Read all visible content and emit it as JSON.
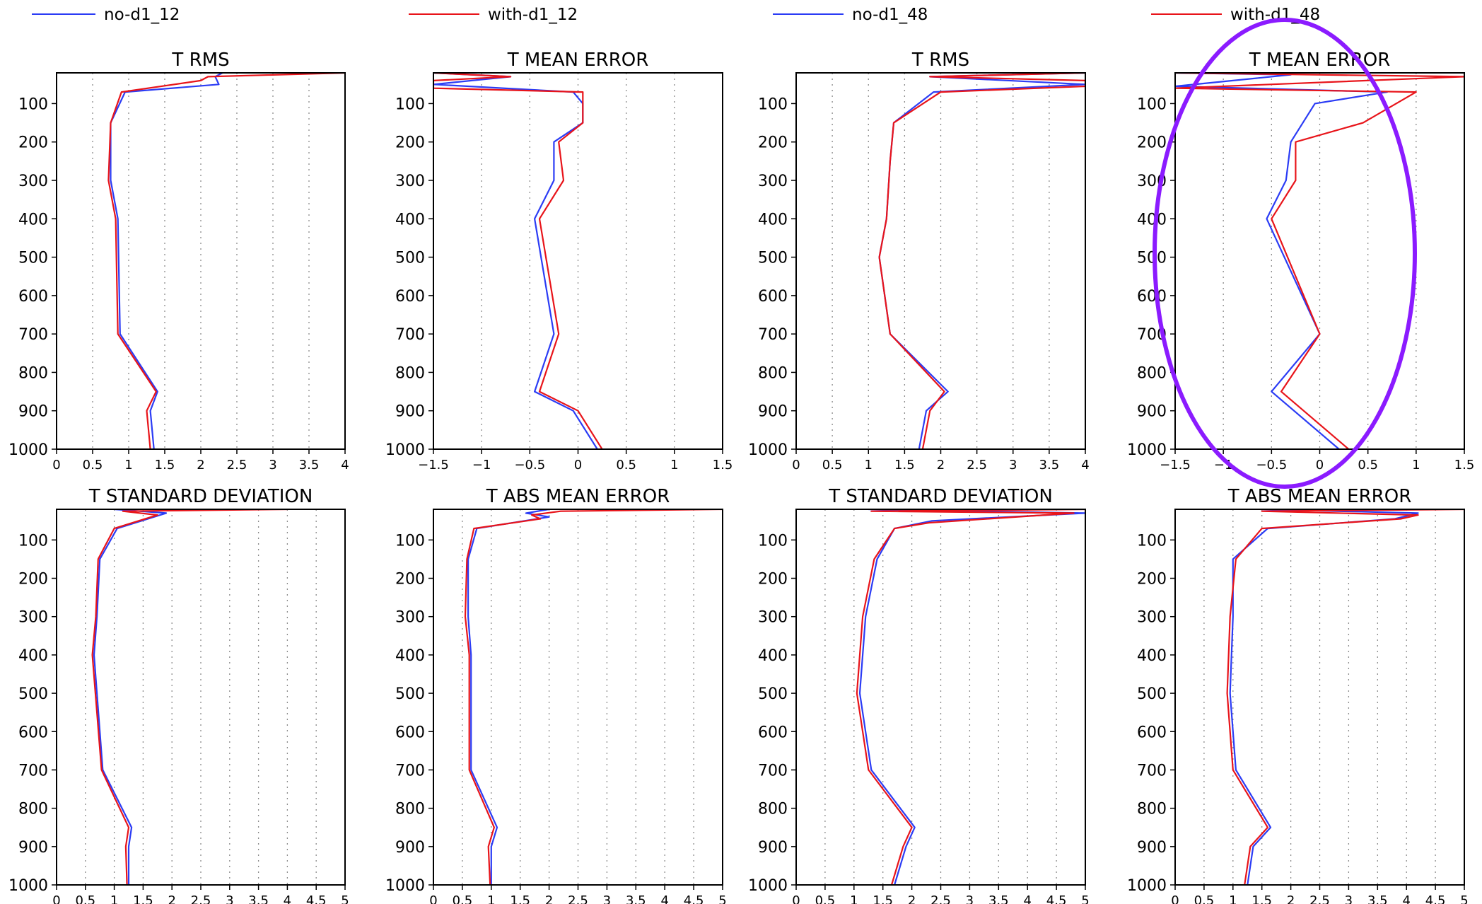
{
  "legend": [
    {
      "label": "no-d1_12",
      "color": "#2b3cf5"
    },
    {
      "label": "with-d1_12",
      "color": "#e8141a"
    },
    {
      "label": "no-d1_48",
      "color": "#2b3cf5"
    },
    {
      "label": "with-d1_48",
      "color": "#e8141a"
    }
  ],
  "colors": {
    "blue": "#2b3cf5",
    "red": "#e8141a",
    "annotation_ellipse": "#8b1bff"
  },
  "annotation": {
    "type": "ellipse",
    "panel": "T MEAN ERROR (48)",
    "description_visible": false
  },
  "chart_data": [
    {
      "type": "line",
      "title": "T RMS",
      "ylim": [
        1000,
        20
      ],
      "yticks": [
        100,
        200,
        300,
        400,
        500,
        600,
        700,
        800,
        900,
        1000
      ],
      "y_inverted": true,
      "xlim": [
        0,
        4
      ],
      "xticks": [
        "0",
        "0.5",
        "1",
        "1.5",
        "2",
        "2.5",
        "3",
        "3.5",
        "4"
      ],
      "grid": "vertical dotted",
      "series": [
        {
          "name": "no-d1_12",
          "color": "#2b3cf5",
          "points": [
            [
              2.3,
              20
            ],
            [
              2.2,
              30
            ],
            [
              2.25,
              50
            ],
            [
              0.95,
              70
            ],
            [
              0.75,
              150
            ],
            [
              0.75,
              300
            ],
            [
              0.85,
              400
            ],
            [
              0.88,
              700
            ],
            [
              1.4,
              850
            ],
            [
              1.3,
              900
            ],
            [
              1.35,
              1000
            ]
          ]
        },
        {
          "name": "with-d1_12",
          "color": "#e8141a",
          "points": [
            [
              4.0,
              20
            ],
            [
              2.1,
              30
            ],
            [
              2.0,
              40
            ],
            [
              0.9,
              70
            ],
            [
              0.75,
              150
            ],
            [
              0.72,
              300
            ],
            [
              0.82,
              400
            ],
            [
              0.85,
              700
            ],
            [
              1.38,
              850
            ],
            [
              1.25,
              900
            ],
            [
              1.3,
              1000
            ]
          ]
        }
      ]
    },
    {
      "type": "line",
      "title": "T MEAN ERROR",
      "ylim": [
        1000,
        20
      ],
      "yticks": [
        100,
        200,
        300,
        400,
        500,
        600,
        700,
        800,
        900,
        1000
      ],
      "y_inverted": true,
      "xlim": [
        -1.5,
        1.5
      ],
      "xticks": [
        "−1.5",
        "−1",
        "−0.5",
        "0",
        "0.5",
        "1",
        "1.5"
      ],
      "grid": "vertical dotted",
      "series": [
        {
          "name": "no-d1_12",
          "color": "#2b3cf5",
          "points": [
            [
              -1.5,
              20
            ],
            [
              -0.7,
              30
            ],
            [
              -1.5,
              50
            ],
            [
              -0.05,
              70
            ],
            [
              0.05,
              100
            ],
            [
              0.05,
              150
            ],
            [
              -0.25,
              200
            ],
            [
              -0.25,
              300
            ],
            [
              -0.45,
              400
            ],
            [
              -0.25,
              700
            ],
            [
              -0.45,
              850
            ],
            [
              -0.05,
              900
            ],
            [
              0.2,
              1000
            ]
          ]
        },
        {
          "name": "with-d1_12",
          "color": "#e8141a",
          "points": [
            [
              -1.5,
              20
            ],
            [
              -0.7,
              30
            ],
            [
              -1.5,
              40
            ],
            [
              -1.5,
              60
            ],
            [
              0.05,
              70
            ],
            [
              0.05,
              150
            ],
            [
              -0.2,
              200
            ],
            [
              -0.15,
              300
            ],
            [
              -0.4,
              400
            ],
            [
              -0.2,
              700
            ],
            [
              -0.4,
              850
            ],
            [
              0.0,
              900
            ],
            [
              0.25,
              1000
            ]
          ]
        }
      ]
    },
    {
      "type": "line",
      "title": "T RMS",
      "ylim": [
        1000,
        20
      ],
      "yticks": [
        100,
        200,
        300,
        400,
        500,
        600,
        700,
        800,
        900,
        1000
      ],
      "y_inverted": true,
      "xlim": [
        0,
        4
      ],
      "xticks": [
        "0",
        "0.5",
        "1",
        "1.5",
        "2",
        "2.5",
        "3",
        "3.5",
        "4"
      ],
      "grid": "vertical dotted",
      "series": [
        {
          "name": "no-d1_48",
          "color": "#2b3cf5",
          "points": [
            [
              4.0,
              20
            ],
            [
              1.85,
              30
            ],
            [
              4.0,
              50
            ],
            [
              1.9,
              70
            ],
            [
              1.35,
              150
            ],
            [
              1.3,
              250
            ],
            [
              1.25,
              400
            ],
            [
              1.15,
              500
            ],
            [
              1.3,
              700
            ],
            [
              2.1,
              850
            ],
            [
              1.8,
              900
            ],
            [
              1.7,
              1000
            ]
          ]
        },
        {
          "name": "with-d1_48",
          "color": "#e8141a",
          "points": [
            [
              4.0,
              20
            ],
            [
              1.85,
              30
            ],
            [
              4.0,
              40
            ],
            [
              4.0,
              55
            ],
            [
              2.0,
              70
            ],
            [
              1.35,
              150
            ],
            [
              1.3,
              250
            ],
            [
              1.25,
              400
            ],
            [
              1.15,
              500
            ],
            [
              1.3,
              700
            ],
            [
              2.05,
              850
            ],
            [
              1.85,
              900
            ],
            [
              1.75,
              1000
            ]
          ]
        }
      ]
    },
    {
      "type": "line",
      "title": "T MEAN ERROR",
      "ylim": [
        1000,
        20
      ],
      "yticks": [
        100,
        200,
        300,
        400,
        500,
        600,
        700,
        800,
        900,
        1000
      ],
      "y_inverted": true,
      "xlim": [
        -1.5,
        1.5
      ],
      "xticks": [
        "−1.5",
        "−1",
        "−0.5",
        "0",
        "0.5",
        "1",
        "1.5"
      ],
      "grid": "vertical dotted",
      "series": [
        {
          "name": "no-d1_48",
          "color": "#2b3cf5",
          "points": [
            [
              -1.5,
              20
            ],
            [
              -0.3,
              25
            ],
            [
              -1.5,
              55
            ],
            [
              0.7,
              70
            ],
            [
              -0.05,
              100
            ],
            [
              -0.3,
              200
            ],
            [
              -0.35,
              300
            ],
            [
              -0.55,
              400
            ],
            [
              0.0,
              700
            ],
            [
              -0.5,
              850
            ],
            [
              0.2,
              1000
            ]
          ]
        },
        {
          "name": "with-d1_48",
          "color": "#e8141a",
          "points": [
            [
              -1.5,
              20
            ],
            [
              1.5,
              30
            ],
            [
              -1.5,
              60
            ],
            [
              1.0,
              70
            ],
            [
              0.45,
              150
            ],
            [
              -0.25,
              200
            ],
            [
              -0.25,
              300
            ],
            [
              -0.5,
              400
            ],
            [
              0.0,
              700
            ],
            [
              -0.4,
              850
            ],
            [
              0.3,
              1000
            ]
          ]
        }
      ]
    },
    {
      "type": "line",
      "title": "T STANDARD DEVIATION",
      "ylim": [
        1000,
        20
      ],
      "yticks": [
        100,
        200,
        300,
        400,
        500,
        600,
        700,
        800,
        900,
        1000
      ],
      "y_inverted": true,
      "xlim": [
        0,
        5
      ],
      "xticks": [
        "0",
        "0.5",
        "1",
        "1.5",
        "2",
        "2.5",
        "3",
        "3.5",
        "4",
        "4.5",
        "5"
      ],
      "grid": "vertical dotted",
      "series": [
        {
          "name": "no-d1_12",
          "color": "#2b3cf5",
          "points": [
            [
              1.0,
              20
            ],
            [
              1.9,
              30
            ],
            [
              1.05,
              70
            ],
            [
              0.75,
              150
            ],
            [
              0.7,
              300
            ],
            [
              0.65,
              400
            ],
            [
              0.8,
              700
            ],
            [
              1.3,
              850
            ],
            [
              1.25,
              900
            ],
            [
              1.25,
              1000
            ]
          ]
        },
        {
          "name": "with-d1_12",
          "color": "#e8141a",
          "points": [
            [
              4.0,
              20
            ],
            [
              1.15,
              25
            ],
            [
              1.75,
              35
            ],
            [
              1.0,
              70
            ],
            [
              0.72,
              150
            ],
            [
              0.68,
              300
            ],
            [
              0.62,
              400
            ],
            [
              0.78,
              700
            ],
            [
              1.25,
              850
            ],
            [
              1.2,
              900
            ],
            [
              1.22,
              1000
            ]
          ]
        }
      ]
    },
    {
      "type": "line",
      "title": "T ABS MEAN ERROR",
      "ylim": [
        1000,
        20
      ],
      "yticks": [
        100,
        200,
        300,
        400,
        500,
        600,
        700,
        800,
        900,
        1000
      ],
      "y_inverted": true,
      "xlim": [
        0,
        5
      ],
      "xticks": [
        "0",
        "0.5",
        "1",
        "1.5",
        "2",
        "2.5",
        "3",
        "3.5",
        "4",
        "4.5",
        "5"
      ],
      "grid": "vertical dotted",
      "series": [
        {
          "name": "no-d1_12",
          "color": "#2b3cf5",
          "points": [
            [
              2.0,
              20
            ],
            [
              1.6,
              30
            ],
            [
              2.0,
              40
            ],
            [
              0.75,
              70
            ],
            [
              0.6,
              150
            ],
            [
              0.6,
              300
            ],
            [
              0.65,
              400
            ],
            [
              0.65,
              700
            ],
            [
              1.1,
              850
            ],
            [
              1.0,
              900
            ],
            [
              1.0,
              1000
            ]
          ]
        },
        {
          "name": "with-d1_12",
          "color": "#e8141a",
          "points": [
            [
              5.0,
              20
            ],
            [
              2.2,
              25
            ],
            [
              1.7,
              35
            ],
            [
              1.85,
              45
            ],
            [
              0.7,
              70
            ],
            [
              0.58,
              150
            ],
            [
              0.55,
              300
            ],
            [
              0.62,
              400
            ],
            [
              0.62,
              700
            ],
            [
              1.05,
              850
            ],
            [
              0.95,
              900
            ],
            [
              0.98,
              1000
            ]
          ]
        }
      ]
    },
    {
      "type": "line",
      "title": "T STANDARD DEVIATION",
      "ylim": [
        1000,
        20
      ],
      "yticks": [
        100,
        200,
        300,
        400,
        500,
        600,
        700,
        800,
        900,
        1000
      ],
      "y_inverted": true,
      "xlim": [
        0,
        5
      ],
      "xticks": [
        "0",
        "0.5",
        "1",
        "1.5",
        "2",
        "2.5",
        "3",
        "3.5",
        "4",
        "4.5",
        "5"
      ],
      "grid": "vertical dotted",
      "series": [
        {
          "name": "no-d1_48",
          "color": "#2b3cf5",
          "points": [
            [
              1.25,
              20
            ],
            [
              5.0,
              30
            ],
            [
              2.35,
              50
            ],
            [
              1.7,
              70
            ],
            [
              1.4,
              150
            ],
            [
              1.2,
              300
            ],
            [
              1.1,
              500
            ],
            [
              1.3,
              700
            ],
            [
              2.05,
              850
            ],
            [
              1.9,
              900
            ],
            [
              1.7,
              1000
            ]
          ]
        },
        {
          "name": "with-d1_48",
          "color": "#e8141a",
          "points": [
            [
              5.0,
              20
            ],
            [
              1.3,
              25
            ],
            [
              4.8,
              30
            ],
            [
              2.3,
              55
            ],
            [
              1.7,
              70
            ],
            [
              1.35,
              150
            ],
            [
              1.15,
              300
            ],
            [
              1.05,
              500
            ],
            [
              1.25,
              700
            ],
            [
              2.0,
              850
            ],
            [
              1.85,
              900
            ],
            [
              1.65,
              1000
            ]
          ]
        }
      ]
    },
    {
      "type": "line",
      "title": "T ABS MEAN ERROR",
      "ylim": [
        1000,
        20
      ],
      "yticks": [
        100,
        200,
        300,
        400,
        500,
        600,
        700,
        800,
        900,
        1000
      ],
      "y_inverted": true,
      "xlim": [
        0,
        5
      ],
      "xticks": [
        "0",
        "0.5",
        "1",
        "1.5",
        "2",
        "2.5",
        "3",
        "3.5",
        "4",
        "4.5",
        "5"
      ],
      "grid": "vertical dotted",
      "series": [
        {
          "name": "no-d1_48",
          "color": "#2b3cf5",
          "points": [
            [
              1.5,
              20
            ],
            [
              4.2,
              30
            ],
            [
              3.8,
              45
            ],
            [
              1.6,
              70
            ],
            [
              1.0,
              150
            ],
            [
              1.0,
              300
            ],
            [
              0.95,
              500
            ],
            [
              1.05,
              700
            ],
            [
              1.65,
              850
            ],
            [
              1.35,
              900
            ],
            [
              1.25,
              1000
            ]
          ]
        },
        {
          "name": "with-d1_48",
          "color": "#e8141a",
          "points": [
            [
              5.0,
              20
            ],
            [
              1.5,
              25
            ],
            [
              4.2,
              35
            ],
            [
              3.9,
              45
            ],
            [
              1.5,
              70
            ],
            [
              1.05,
              150
            ],
            [
              0.95,
              300
            ],
            [
              0.9,
              500
            ],
            [
              1.0,
              700
            ],
            [
              1.6,
              850
            ],
            [
              1.3,
              900
            ],
            [
              1.2,
              1000
            ]
          ]
        }
      ]
    }
  ]
}
